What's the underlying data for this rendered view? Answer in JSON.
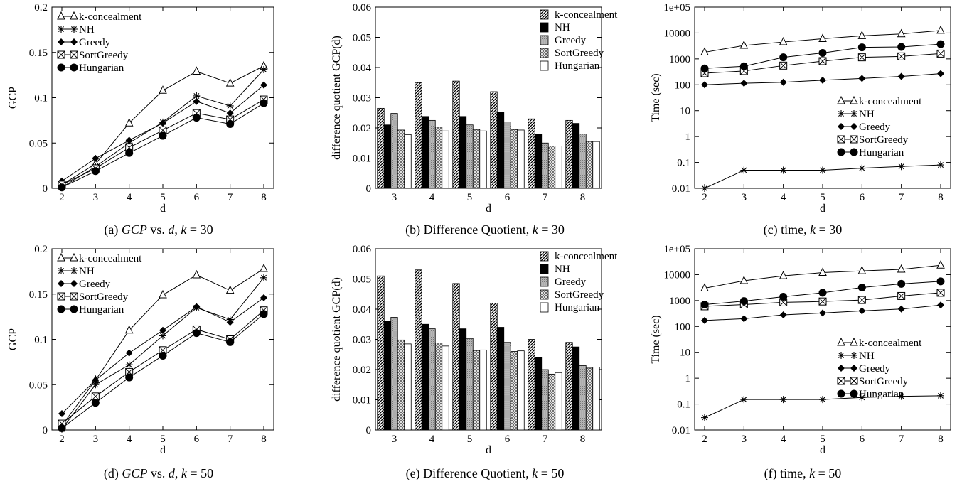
{
  "figure": {
    "panels": [
      {
        "id": "a",
        "caption": {
          "prefix": "(a) ",
          "math": "GCP",
          "mid": " vs. ",
          "math2": "d",
          "suffix": ", ",
          "kvar": "k",
          "kval": " = 30"
        }
      },
      {
        "id": "b",
        "caption": {
          "prefix": "(b) Difference Quotient, ",
          "kvar": "k",
          "kval": " = 30"
        }
      },
      {
        "id": "c",
        "caption": {
          "prefix": "(c) time, ",
          "kvar": "k",
          "kval": " = 30"
        }
      },
      {
        "id": "d",
        "caption": {
          "prefix": "(d) ",
          "math": "GCP",
          "mid": " vs. ",
          "math2": "d",
          "suffix": ", ",
          "kvar": "k",
          "kval": " = 50"
        }
      },
      {
        "id": "e",
        "caption": {
          "prefix": "(e) Difference Quotient, ",
          "kvar": "k",
          "kval": " = 50"
        }
      },
      {
        "id": "f",
        "caption": {
          "prefix": "(f) time, ",
          "kvar": "k",
          "kval": " = 50"
        }
      }
    ]
  },
  "chart_data": [
    {
      "id": "a",
      "type": "line",
      "xlabel": "d",
      "ylabel": "GCP",
      "x": [
        2,
        3,
        4,
        5,
        6,
        7,
        8
      ],
      "xlim": [
        2,
        8
      ],
      "ylim": [
        0,
        0.2
      ],
      "yticks": [
        "0",
        "0.05",
        "0.1",
        "0.15",
        "0.2"
      ],
      "legend_position": "top-left",
      "series": [
        {
          "name": "k-concealment",
          "marker": "triangle-open",
          "values": [
            0.004,
            0.027,
            0.072,
            0.108,
            0.129,
            0.116,
            0.135
          ]
        },
        {
          "name": "NH",
          "marker": "star",
          "values": [
            0.001,
            0.024,
            0.05,
            0.073,
            0.102,
            0.091,
            0.131
          ]
        },
        {
          "name": "Greedy",
          "marker": "diamond-filled",
          "values": [
            0.008,
            0.033,
            0.053,
            0.072,
            0.096,
            0.083,
            0.114
          ]
        },
        {
          "name": "SortGreedy",
          "marker": "square-crossed",
          "values": [
            0.004,
            0.022,
            0.045,
            0.064,
            0.083,
            0.076,
            0.098
          ]
        },
        {
          "name": "Hungarian",
          "marker": "circle-filled",
          "values": [
            0.001,
            0.019,
            0.039,
            0.058,
            0.078,
            0.071,
            0.094
          ]
        }
      ]
    },
    {
      "id": "b",
      "type": "bar",
      "xlabel": "d",
      "ylabel": "difference quotient GCP(d)",
      "categories": [
        "3",
        "4",
        "5",
        "6",
        "7",
        "8"
      ],
      "ylim": [
        0,
        0.06
      ],
      "yticks": [
        "0",
        "0.01",
        "0.02",
        "0.03",
        "0.04",
        "0.05",
        "0.06"
      ],
      "legend_position": "top-right",
      "series": [
        {
          "name": "k-concealment",
          "pattern": "hatch",
          "values": [
            0.0265,
            0.035,
            0.0355,
            0.032,
            0.023,
            0.0225
          ]
        },
        {
          "name": "NH",
          "pattern": "solid",
          "values": [
            0.021,
            0.0238,
            0.0238,
            0.0253,
            0.018,
            0.0215
          ]
        },
        {
          "name": "Greedy",
          "pattern": "grey",
          "values": [
            0.0248,
            0.0225,
            0.021,
            0.022,
            0.015,
            0.018
          ]
        },
        {
          "name": "SortGreedy",
          "pattern": "crosshatch",
          "values": [
            0.0193,
            0.0203,
            0.0195,
            0.0195,
            0.014,
            0.0155
          ]
        },
        {
          "name": "Hungarian",
          "pattern": "empty",
          "values": [
            0.0178,
            0.019,
            0.019,
            0.0193,
            0.014,
            0.0155
          ]
        }
      ]
    },
    {
      "id": "c",
      "type": "line",
      "xlabel": "d",
      "ylabel": "Time (sec)",
      "yscale": "log",
      "x": [
        2,
        3,
        4,
        5,
        6,
        7,
        8
      ],
      "xlim": [
        2,
        8
      ],
      "ylim": [
        0.01,
        100000
      ],
      "yticks": [
        "0.01",
        "0.1",
        "1",
        "10",
        "100",
        "1000",
        "10000",
        "1e+05"
      ],
      "legend_position": "center-right",
      "series": [
        {
          "name": "k-concealment",
          "marker": "triangle-open",
          "values": [
            1800,
            3300,
            4500,
            6000,
            7800,
            9200,
            12500
          ]
        },
        {
          "name": "NH",
          "marker": "star",
          "values": [
            0.01,
            0.05,
            0.05,
            0.05,
            0.06,
            0.07,
            0.08
          ]
        },
        {
          "name": "Greedy",
          "marker": "diamond-filled",
          "values": [
            100,
            115,
            125,
            150,
            175,
            210,
            270
          ]
        },
        {
          "name": "SortGreedy",
          "marker": "square-crossed",
          "values": [
            280,
            340,
            550,
            820,
            1150,
            1250,
            1600
          ]
        },
        {
          "name": "Hungarian",
          "marker": "circle-filled",
          "values": [
            430,
            520,
            1150,
            1700,
            2800,
            2900,
            3700
          ]
        }
      ]
    },
    {
      "id": "d",
      "type": "line",
      "xlabel": "d",
      "ylabel": "GCP",
      "x": [
        2,
        3,
        4,
        5,
        6,
        7,
        8
      ],
      "xlim": [
        2,
        8
      ],
      "ylim": [
        0,
        0.2
      ],
      "yticks": [
        "0",
        "0.05",
        "0.1",
        "0.15",
        "0.2"
      ],
      "legend_position": "top-left",
      "series": [
        {
          "name": "k-concealment",
          "marker": "triangle-open",
          "values": [
            0.005,
            0.055,
            0.11,
            0.149,
            0.171,
            0.154,
            0.178
          ]
        },
        {
          "name": "NH",
          "marker": "star",
          "values": [
            0.001,
            0.05,
            0.072,
            0.104,
            0.135,
            0.122,
            0.168
          ]
        },
        {
          "name": "Greedy",
          "marker": "diamond-filled",
          "values": [
            0.018,
            0.055,
            0.085,
            0.11,
            0.136,
            0.119,
            0.146
          ]
        },
        {
          "name": "SortGreedy",
          "marker": "square-crossed",
          "values": [
            0.007,
            0.037,
            0.064,
            0.088,
            0.111,
            0.1,
            0.132
          ]
        },
        {
          "name": "Hungarian",
          "marker": "circle-filled",
          "values": [
            0.002,
            0.03,
            0.058,
            0.082,
            0.107,
            0.097,
            0.128
          ]
        }
      ]
    },
    {
      "id": "e",
      "type": "bar",
      "xlabel": "d",
      "ylabel": "difference quotient GCP(d)",
      "categories": [
        "3",
        "4",
        "5",
        "6",
        "7",
        "8"
      ],
      "ylim": [
        0,
        0.06
      ],
      "yticks": [
        "0",
        "0.01",
        "0.02",
        "0.03",
        "0.04",
        "0.05",
        "0.06"
      ],
      "legend_position": "top-right",
      "series": [
        {
          "name": "k-concealment",
          "pattern": "hatch",
          "values": [
            0.051,
            0.053,
            0.0485,
            0.042,
            0.03,
            0.029
          ]
        },
        {
          "name": "NH",
          "pattern": "solid",
          "values": [
            0.036,
            0.035,
            0.0335,
            0.034,
            0.024,
            0.0275
          ]
        },
        {
          "name": "Greedy",
          "pattern": "grey",
          "values": [
            0.0373,
            0.0335,
            0.0303,
            0.029,
            0.02,
            0.0213
          ]
        },
        {
          "name": "SortGreedy",
          "pattern": "crosshatch",
          "values": [
            0.0298,
            0.0288,
            0.0263,
            0.026,
            0.0185,
            0.0205
          ]
        },
        {
          "name": "Hungarian",
          "pattern": "empty",
          "values": [
            0.0285,
            0.0278,
            0.0265,
            0.0262,
            0.019,
            0.0208
          ]
        }
      ]
    },
    {
      "id": "f",
      "type": "line",
      "xlabel": "d",
      "ylabel": "Time (sec)",
      "yscale": "log",
      "x": [
        2,
        3,
        4,
        5,
        6,
        7,
        8
      ],
      "xlim": [
        2,
        8
      ],
      "ylim": [
        0.01,
        100000
      ],
      "yticks": [
        "0.01",
        "0.1",
        "1",
        "10",
        "100",
        "1000",
        "10000",
        "1e+05"
      ],
      "legend_position": "center-right",
      "series": [
        {
          "name": "k-concealment",
          "marker": "triangle-open",
          "values": [
            3000,
            5800,
            9000,
            12000,
            14000,
            16000,
            23000
          ]
        },
        {
          "name": "NH",
          "marker": "star",
          "values": [
            0.03,
            0.15,
            0.15,
            0.15,
            0.18,
            0.2,
            0.21
          ]
        },
        {
          "name": "Greedy",
          "marker": "diamond-filled",
          "values": [
            170,
            200,
            280,
            330,
            400,
            470,
            670
          ]
        },
        {
          "name": "SortGreedy",
          "marker": "square-crossed",
          "values": [
            600,
            700,
            850,
            920,
            1050,
            1500,
            2000
          ]
        },
        {
          "name": "Hungarian",
          "marker": "circle-filled",
          "values": [
            700,
            950,
            1400,
            2000,
            3200,
            4400,
            5500
          ]
        }
      ]
    }
  ]
}
